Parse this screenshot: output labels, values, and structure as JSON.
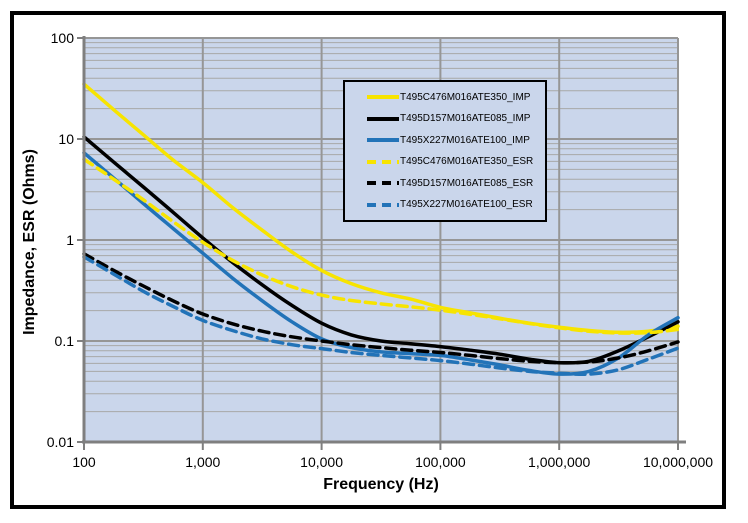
{
  "page": {
    "background": "#FFFFFF"
  },
  "chart_data": {
    "type": "line",
    "title": "",
    "xlabel": "Frequency (Hz)",
    "ylabel": "Impedance, ESR (Ohms)",
    "x_scale": "log",
    "y_scale": "log",
    "xlim": [
      100,
      10000000
    ],
    "ylim": [
      0.01,
      100
    ],
    "x_ticks": [
      {
        "value": 100,
        "label": "100"
      },
      {
        "value": 1000,
        "label": "1,000"
      },
      {
        "value": 10000,
        "label": "10,000"
      },
      {
        "value": 100000,
        "label": "100,000"
      },
      {
        "value": 1000000,
        "label": "1,000,000"
      },
      {
        "value": 10000000,
        "label": "10,000,000"
      }
    ],
    "y_ticks": [
      {
        "value": 100,
        "label": "100"
      },
      {
        "value": 10,
        "label": "10"
      },
      {
        "value": 1,
        "label": "1"
      },
      {
        "value": 0.1,
        "label": "0.1"
      },
      {
        "value": 0.01,
        "label": "0.01"
      }
    ],
    "grid": {
      "x_major": true,
      "y_major": true,
      "y_minor": true,
      "x_minor": false
    },
    "legend_position": "inside-top-center",
    "x": [
      100,
      178,
      316,
      562,
      1000,
      1780,
      3160,
      5620,
      10000,
      17800,
      31600,
      56200,
      100000,
      178000,
      316000,
      562000,
      1000000,
      1780000,
      3160000,
      5620000,
      10000000
    ],
    "series": [
      {
        "name": "T495C476M016ATE350_IMP",
        "color": "#F7E400",
        "style": "solid",
        "values": [
          35,
          19.5,
          11.0,
          6.2,
          3.7,
          2.1,
          1.25,
          0.76,
          0.5,
          0.37,
          0.3,
          0.26,
          0.215,
          0.19,
          0.168,
          0.15,
          0.137,
          0.127,
          0.122,
          0.125,
          0.14
        ]
      },
      {
        "name": "T495D157M016ATE085_IMP",
        "color": "#000000",
        "style": "solid",
        "values": [
          10.5,
          5.9,
          3.35,
          1.88,
          1.05,
          0.6,
          0.36,
          0.225,
          0.15,
          0.115,
          0.1,
          0.094,
          0.088,
          0.081,
          0.074,
          0.066,
          0.061,
          0.063,
          0.08,
          0.11,
          0.155
        ]
      },
      {
        "name": "T495X227M016ATE100_IMP",
        "color": "#2273B8",
        "style": "solid",
        "values": [
          7.3,
          4.1,
          2.3,
          1.3,
          0.74,
          0.42,
          0.25,
          0.155,
          0.105,
          0.086,
          0.078,
          0.075,
          0.072,
          0.065,
          0.058,
          0.051,
          0.047,
          0.05,
          0.068,
          0.115,
          0.17
        ]
      },
      {
        "name": "T495C476M016ATE350_ESR",
        "color": "#F7E400",
        "style": "dashed",
        "values": [
          6.3,
          4.0,
          2.5,
          1.52,
          0.95,
          0.63,
          0.45,
          0.345,
          0.285,
          0.252,
          0.233,
          0.218,
          0.202,
          0.184,
          0.166,
          0.149,
          0.135,
          0.125,
          0.12,
          0.121,
          0.13
        ]
      },
      {
        "name": "T495D157M016ATE085_ESR",
        "color": "#000000",
        "style": "dashed",
        "values": [
          0.73,
          0.5,
          0.35,
          0.25,
          0.185,
          0.148,
          0.125,
          0.11,
          0.1,
          0.092,
          0.086,
          0.081,
          0.077,
          0.072,
          0.067,
          0.063,
          0.061,
          0.062,
          0.068,
          0.08,
          0.098
        ]
      },
      {
        "name": "T495X227M016ATE100_ESR",
        "color": "#2273B8",
        "style": "dashed",
        "values": [
          0.68,
          0.46,
          0.31,
          0.22,
          0.16,
          0.127,
          0.105,
          0.092,
          0.084,
          0.077,
          0.072,
          0.068,
          0.064,
          0.059,
          0.054,
          0.05,
          0.048,
          0.047,
          0.052,
          0.066,
          0.085
        ]
      }
    ]
  },
  "colors": {
    "plot_bg": "#CAD6EB",
    "grid_major": "#969696",
    "grid_minor": "#A8A8A8",
    "axis": "#7F7F7F",
    "tick_label": "#000000",
    "frame": "#000000",
    "legend_border": "#000000"
  }
}
